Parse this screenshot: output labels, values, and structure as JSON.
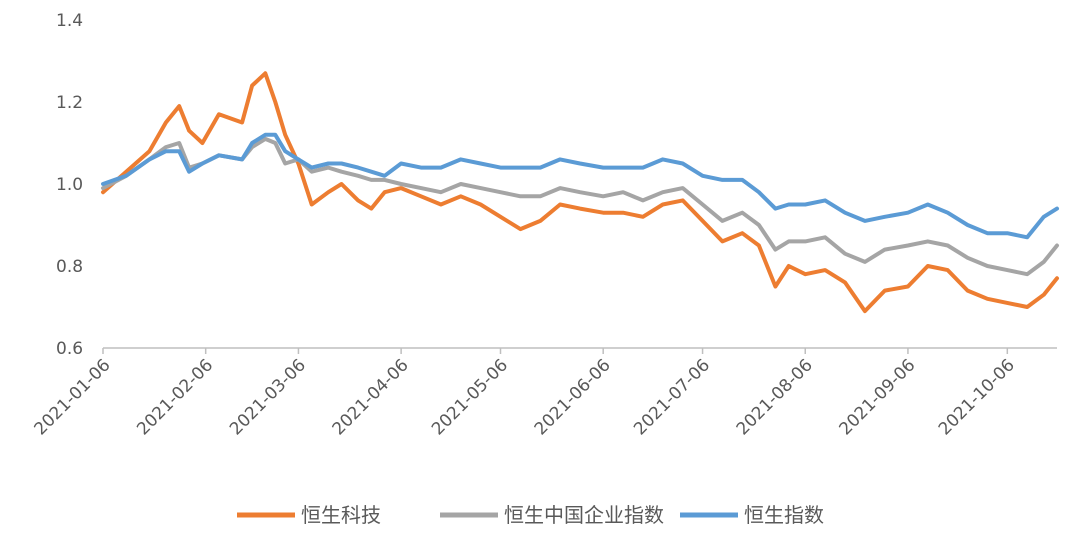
{
  "chart_data": {
    "type": "line",
    "title": "",
    "xlabel": "",
    "ylabel": "",
    "ylim": [
      0.6,
      1.4
    ],
    "yticks": [
      "0.6",
      "0.8",
      "1.0",
      "1.2",
      "1.4"
    ],
    "xlim": [
      "2021-01-06",
      "2021-10-21"
    ],
    "xticks": [
      "2021-01-06",
      "2021-02-06",
      "2021-03-06",
      "2021-04-06",
      "2021-05-06",
      "2021-06-06",
      "2021-07-06",
      "2021-08-06",
      "2021-09-06",
      "2021-10-06"
    ],
    "grid": false,
    "legend_position": "bottom",
    "x": [
      "2021-01-06",
      "2021-01-13",
      "2021-01-20",
      "2021-01-25",
      "2021-01-29",
      "2021-02-01",
      "2021-02-05",
      "2021-02-10",
      "2021-02-17",
      "2021-02-20",
      "2021-02-24",
      "2021-02-27",
      "2021-03-02",
      "2021-03-06",
      "2021-03-10",
      "2021-03-15",
      "2021-03-19",
      "2021-03-24",
      "2021-03-28",
      "2021-04-01",
      "2021-04-06",
      "2021-04-12",
      "2021-04-18",
      "2021-04-24",
      "2021-04-30",
      "2021-05-06",
      "2021-05-12",
      "2021-05-18",
      "2021-05-24",
      "2021-05-30",
      "2021-06-06",
      "2021-06-12",
      "2021-06-18",
      "2021-06-24",
      "2021-06-30",
      "2021-07-06",
      "2021-07-12",
      "2021-07-18",
      "2021-07-23",
      "2021-07-28",
      "2021-08-01",
      "2021-08-06",
      "2021-08-12",
      "2021-08-18",
      "2021-08-24",
      "2021-08-30",
      "2021-09-06",
      "2021-09-12",
      "2021-09-18",
      "2021-09-24",
      "2021-09-30",
      "2021-10-06",
      "2021-10-12",
      "2021-10-17",
      "2021-10-21"
    ],
    "series": [
      {
        "name": "恒生科技",
        "color": "#ED7D31",
        "values": [
          0.98,
          1.03,
          1.08,
          1.15,
          1.19,
          1.13,
          1.1,
          1.17,
          1.15,
          1.24,
          1.27,
          1.2,
          1.12,
          1.05,
          0.95,
          0.98,
          1.0,
          0.96,
          0.94,
          0.98,
          0.99,
          0.97,
          0.95,
          0.97,
          0.95,
          0.92,
          0.89,
          0.91,
          0.95,
          0.94,
          0.93,
          0.93,
          0.92,
          0.95,
          0.96,
          0.91,
          0.86,
          0.88,
          0.85,
          0.75,
          0.8,
          0.78,
          0.79,
          0.76,
          0.69,
          0.74,
          0.75,
          0.8,
          0.79,
          0.74,
          0.72,
          0.71,
          0.7,
          0.73,
          0.77
        ]
      },
      {
        "name": "恒生中国企业指数",
        "color": "#A5A5A5",
        "values": [
          0.99,
          1.02,
          1.06,
          1.09,
          1.1,
          1.04,
          1.05,
          1.07,
          1.06,
          1.09,
          1.11,
          1.1,
          1.05,
          1.06,
          1.03,
          1.04,
          1.03,
          1.02,
          1.01,
          1.01,
          1.0,
          0.99,
          0.98,
          1.0,
          0.99,
          0.98,
          0.97,
          0.97,
          0.99,
          0.98,
          0.97,
          0.98,
          0.96,
          0.98,
          0.99,
          0.95,
          0.91,
          0.93,
          0.9,
          0.84,
          0.86,
          0.86,
          0.87,
          0.83,
          0.81,
          0.84,
          0.85,
          0.86,
          0.85,
          0.82,
          0.8,
          0.79,
          0.78,
          0.81,
          0.85
        ]
      },
      {
        "name": "恒生指数",
        "color": "#5B9BD5",
        "values": [
          1.0,
          1.02,
          1.06,
          1.08,
          1.08,
          1.03,
          1.05,
          1.07,
          1.06,
          1.1,
          1.12,
          1.12,
          1.08,
          1.06,
          1.04,
          1.05,
          1.05,
          1.04,
          1.03,
          1.02,
          1.05,
          1.04,
          1.04,
          1.06,
          1.05,
          1.04,
          1.04,
          1.04,
          1.06,
          1.05,
          1.04,
          1.04,
          1.04,
          1.06,
          1.05,
          1.02,
          1.01,
          1.01,
          0.98,
          0.94,
          0.95,
          0.95,
          0.96,
          0.93,
          0.91,
          0.92,
          0.93,
          0.95,
          0.93,
          0.9,
          0.88,
          0.88,
          0.87,
          0.92,
          0.94
        ]
      }
    ]
  }
}
